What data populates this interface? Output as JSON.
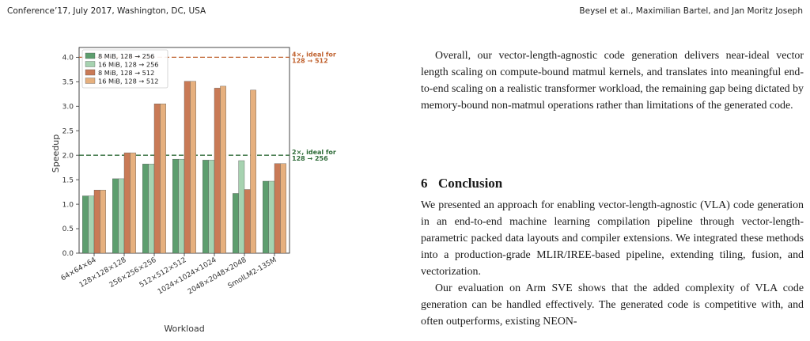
{
  "header": {
    "left": "Conference’17, July 2017, Washington, DC, USA",
    "right": "Beysel et al., Maximilian Bartel, and Jan Moritz Joseph"
  },
  "paragraphs": {
    "p1": "Overall, our vector-length-agnostic code generation delivers near-ideal vector length scaling on compute-bound matmul kernels, and translates into meaningful end-to-end scaling on a realistic transformer workload, the remaining gap being dictated by memory-bound non-matmul operations rather than limitations of the generated code.",
    "section_number": "6",
    "section_title": "Conclusion",
    "p2": "We presented an approach for enabling vector-length-agnostic (VLA) code generation in an end-to-end machine learning compilation pipeline through vector-length-parametric packed data layouts and compiler extensions. We integrated these methods into a production-grade MLIR/IREE-based pipeline, extending tiling, fusion, and vectorization.",
    "p3": "Our evaluation on Arm SVE shows that the added complexity of VLA code generation can be handled effectively. The generated code is competitive with, and often outperforms, existing NEON-"
  },
  "chart_data": {
    "type": "bar",
    "xlabel": "Workload",
    "ylabel": "Speedup",
    "ylim": [
      0,
      4.2
    ],
    "yticks": [
      "0.0",
      "0.5",
      "1.0",
      "1.5",
      "2.0",
      "2.5",
      "3.0",
      "3.5",
      "4.0"
    ],
    "categories": [
      "64×64×64",
      "128×128×128",
      "256×256×256",
      "512×512×512",
      "1024×1024×1024",
      "2048×2048×2048",
      "SmolLM2-135M"
    ],
    "legend_position": "top-left",
    "grid": false,
    "series": [
      {
        "name": "8 MiB, 128 → 256",
        "color": "#5d9e6e",
        "values": [
          1.17,
          1.52,
          1.82,
          1.92,
          1.9,
          1.22,
          1.47
        ]
      },
      {
        "name": "16 MiB, 128 → 256",
        "color": "#a6d2b0",
        "values": [
          1.17,
          1.52,
          1.82,
          1.92,
          1.9,
          1.89,
          1.47
        ]
      },
      {
        "name": "8 MiB, 128 → 512",
        "color": "#c97a56",
        "values": [
          1.29,
          2.05,
          3.05,
          3.51,
          3.37,
          1.3,
          1.83
        ]
      },
      {
        "name": "16 MiB, 128 → 512",
        "color": "#e6b07e",
        "values": [
          1.29,
          2.05,
          3.05,
          3.51,
          3.41,
          3.33,
          1.83
        ]
      }
    ],
    "reference_lines": [
      {
        "value": 4.0,
        "label_line1": "4×, ideal for",
        "label_line2": "128 → 512",
        "color": "#c0622f"
      },
      {
        "value": 2.0,
        "label_line1": "2×, ideal for",
        "label_line2": "128 → 256",
        "color": "#2e6b38"
      }
    ]
  }
}
